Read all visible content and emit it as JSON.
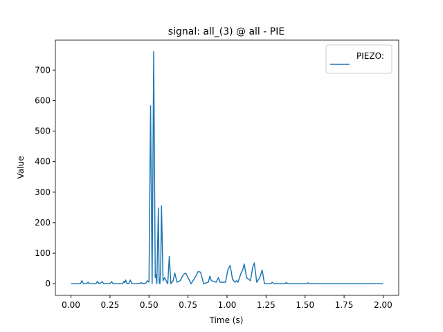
{
  "chart_data": {
    "type": "line",
    "title": "signal: all_(3) @ all - PIE",
    "x_label": "Time (s)",
    "y_label": "Value",
    "x": [
      0,
      0.06,
      0.07,
      0.08,
      0.1,
      0.11,
      0.12,
      0.16,
      0.17,
      0.18,
      0.19,
      0.2,
      0.21,
      0.25,
      0.26,
      0.27,
      0.33,
      0.34,
      0.345,
      0.35,
      0.36,
      0.37,
      0.38,
      0.39,
      0.44,
      0.45,
      0.46,
      0.48,
      0.49,
      0.5,
      0.51,
      0.52,
      0.53,
      0.54,
      0.545,
      0.55,
      0.56,
      0.565,
      0.57,
      0.575,
      0.58,
      0.59,
      0.6,
      0.62,
      0.63,
      0.64,
      0.655,
      0.665,
      0.68,
      0.7,
      0.72,
      0.735,
      0.75,
      0.77,
      0.8,
      0.815,
      0.83,
      0.85,
      0.88,
      0.89,
      0.9,
      0.93,
      0.945,
      0.955,
      0.99,
      1.005,
      1.02,
      1.035,
      1.05,
      1.06,
      1.07,
      1.09,
      1.1,
      1.11,
      1.125,
      1.15,
      1.165,
      1.175,
      1.19,
      1.21,
      1.225,
      1.24,
      1.28,
      1.29,
      1.3,
      1.37,
      1.38,
      1.39,
      1.51,
      1.52,
      1.53,
      2.0
    ],
    "series": [
      {
        "name": "PIEZO:",
        "color": "#1f77b4",
        "values": [
          0,
          0,
          10,
          0,
          0,
          5,
          0,
          0,
          8,
          0,
          2,
          7,
          0,
          0,
          7,
          0,
          0,
          8,
          3,
          12,
          0,
          0,
          12,
          0,
          0,
          4,
          0,
          2,
          10,
          5,
          583,
          0,
          760,
          20,
          30,
          0,
          248,
          5,
          0,
          50,
          255,
          10,
          20,
          0,
          90,
          0,
          10,
          35,
          5,
          10,
          30,
          35,
          20,
          0,
          25,
          40,
          38,
          0,
          5,
          25,
          10,
          5,
          20,
          5,
          5,
          45,
          60,
          15,
          5,
          10,
          5,
          35,
          45,
          65,
          20,
          10,
          55,
          68,
          5,
          20,
          45,
          0,
          0,
          5,
          0,
          0,
          4,
          0,
          0,
          3,
          0,
          0
        ]
      }
    ],
    "xlim": [
      -0.1,
      2.1
    ],
    "ylim": [
      -38,
      798
    ],
    "xticks": [
      {
        "value": 0,
        "label": "0.00"
      },
      {
        "value": 0.25,
        "label": "0.25"
      },
      {
        "value": 0.5,
        "label": "0.50"
      },
      {
        "value": 0.75,
        "label": "0.75"
      },
      {
        "value": 1,
        "label": "1.00"
      },
      {
        "value": 1.25,
        "label": "1.25"
      },
      {
        "value": 1.5,
        "label": "1.50"
      },
      {
        "value": 1.75,
        "label": "1.75"
      },
      {
        "value": 2,
        "label": "2.00"
      }
    ],
    "yticks": [
      0,
      100,
      200,
      300,
      400,
      500,
      600,
      700
    ],
    "grid": false,
    "legend": "upper-right"
  }
}
